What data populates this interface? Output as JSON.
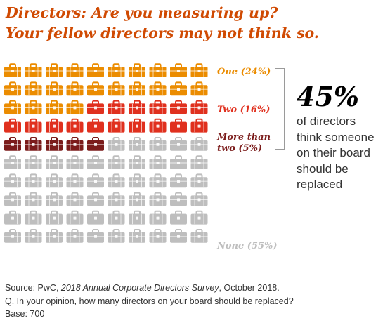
{
  "title": {
    "line1": "Directors: Are you measuring up?",
    "line2": "Your fellow directors may not think so."
  },
  "colors": {
    "title": "#d04a02",
    "one": "#eb8c00",
    "two": "#e0301e",
    "more_than_two": "#7b1c1b",
    "none": "#bebebe"
  },
  "chart_data": {
    "type": "waffle",
    "icon": "briefcase-icon",
    "grid": {
      "rows": 10,
      "cols": 10
    },
    "categories": [
      {
        "label_lines": [
          "One (24%)"
        ],
        "value": 24,
        "color": "#eb8c00"
      },
      {
        "label_lines": [
          "Two (16%)"
        ],
        "value": 16,
        "color": "#e0301e"
      },
      {
        "label_lines": [
          "More than",
          "two (5%)"
        ],
        "value": 5,
        "color": "#7b1c1b"
      },
      {
        "label_lines": [
          "None (55%)"
        ],
        "value": 55,
        "color": "#bebebe"
      }
    ],
    "callout": {
      "value": "45%",
      "text_lines": [
        "of directors",
        "think someone",
        "on their board",
        "should be",
        "replaced"
      ]
    }
  },
  "source": {
    "prefix": "Source: PwC, ",
    "survey": "2018 Annual Corporate Directors Survey",
    "suffix": ", October 2018.",
    "question": "Q. In your opinion, how many directors on your board should be replaced?",
    "base": "Base: 700"
  }
}
